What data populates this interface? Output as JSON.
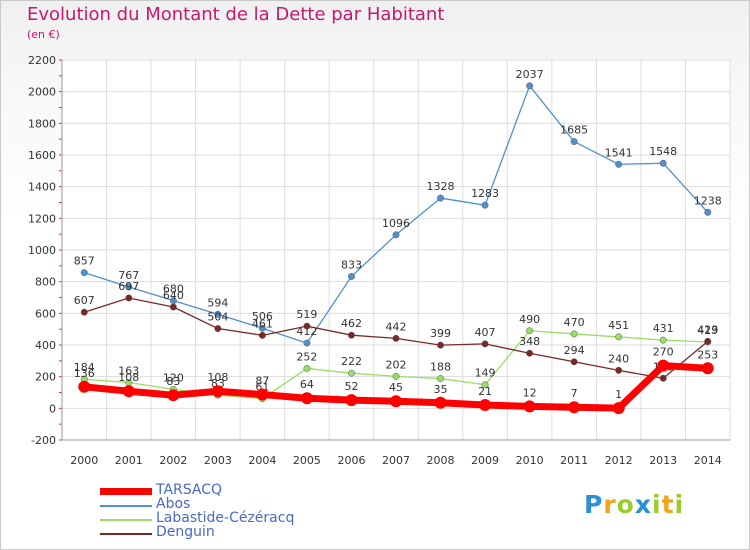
{
  "title": "Evolution du Montant de la Dette par Habitant",
  "subtitle": "(en €)",
  "logo_text": "Proxiti",
  "chart_data": {
    "type": "line",
    "title": "Evolution du Montant de la Dette par Habitant",
    "subtitle": "(en €)",
    "xlabel": "",
    "ylabel": "",
    "x": [
      2000,
      2001,
      2002,
      2003,
      2004,
      2005,
      2006,
      2007,
      2008,
      2009,
      2010,
      2011,
      2012,
      2013,
      2014
    ],
    "ylim": [
      -200,
      2200
    ],
    "yticks": [
      -200,
      0,
      200,
      400,
      600,
      800,
      1000,
      1200,
      1400,
      1600,
      1800,
      2000,
      2200
    ],
    "grid": true,
    "legend_position": "bottom-left",
    "series": [
      {
        "name": "TARSACQ",
        "color": "#ff0000",
        "values": [
          136,
          108,
          83,
          108,
          87,
          64,
          52,
          45,
          35,
          21,
          12,
          7,
          1,
          270,
          253
        ]
      },
      {
        "name": "Abos",
        "color": "#4f90cf",
        "values": [
          857,
          767,
          680,
          594,
          506,
          412,
          833,
          1096,
          1328,
          1283,
          2037,
          1685,
          1541,
          1548,
          1238
        ]
      },
      {
        "name": "Labastide-Cézéracq",
        "color": "#99dd66",
        "values": [
          184,
          163,
          120,
          83,
          61,
          252,
          222,
          202,
          188,
          149,
          490,
          470,
          451,
          431,
          419
        ]
      },
      {
        "name": "Denguin",
        "color": "#7a2727",
        "values": [
          607,
          697,
          640,
          504,
          461,
          519,
          462,
          442,
          399,
          407,
          348,
          294,
          240,
          190,
          423
        ]
      }
    ]
  }
}
